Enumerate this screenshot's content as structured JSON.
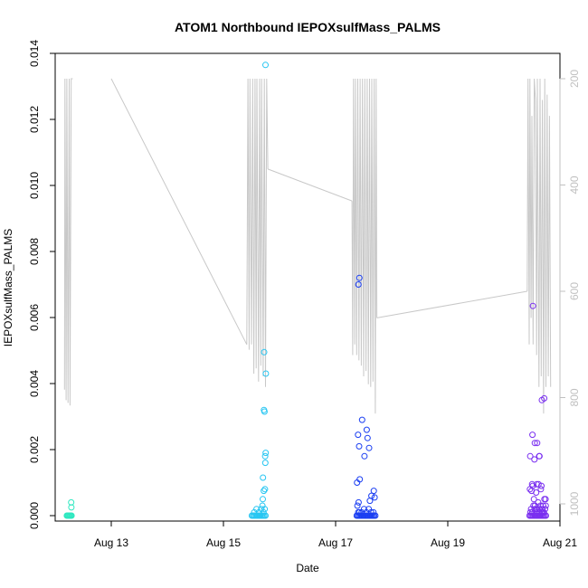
{
  "chart_data": {
    "type": "scatter",
    "title": "ATOM1 Northbound IEPOXsulfMass_PALMS",
    "xlabel": "Date",
    "ylabel": "IEPOXsulfMass_PALMS",
    "x_axis": {
      "type": "date",
      "range": [
        "2016-08-12T00:00",
        "2016-08-21T00:00"
      ],
      "ticks": [
        {
          "value": "2016-08-13",
          "label": "Aug 13"
        },
        {
          "value": "2016-08-15",
          "label": "Aug 15"
        },
        {
          "value": "2016-08-17",
          "label": "Aug 17"
        },
        {
          "value": "2016-08-19",
          "label": "Aug 19"
        },
        {
          "value": "2016-08-21",
          "label": "Aug 21"
        }
      ]
    },
    "y_axis": {
      "range": [
        0,
        0.014
      ],
      "ticks": [
        "0.000",
        "0.002",
        "0.004",
        "0.006",
        "0.008",
        "0.010",
        "0.012",
        "0.014"
      ]
    },
    "y2_axis": {
      "reversed": true,
      "range": [
        1000,
        200
      ],
      "ticks": [
        "200",
        "400",
        "600",
        "800",
        "1000"
      ],
      "color": "#c0c0c0"
    },
    "grid": false,
    "legend": "none",
    "colors": {
      "flight1": "#2ee8c0",
      "flight2": "#27c6f2",
      "flight3": "#1a3ef2",
      "flight4": "#7a2ff0",
      "altitude_trace": "#c8c8c8"
    },
    "series": [
      {
        "color_key": "flight1",
        "x": [
          "2016-08-12T05:00",
          "2016-08-12T05:20",
          "2016-08-12T05:40",
          "2016-08-12T06:00",
          "2016-08-12T06:20",
          "2016-08-12T06:40",
          "2016-08-12T07:00",
          "2016-08-12T06:50",
          "2016-08-12T06:55"
        ],
        "y": [
          0.0,
          0.0,
          0.0,
          0.0,
          0.0,
          0.0,
          0.0,
          0.0004,
          0.00025
        ]
      },
      {
        "color_key": "flight2",
        "x": [
          "2016-08-15T12:10",
          "2016-08-15T12:40",
          "2016-08-15T13:00",
          "2016-08-15T13:30",
          "2016-08-15T14:00",
          "2016-08-15T14:30",
          "2016-08-15T15:00",
          "2016-08-15T15:30",
          "2016-08-15T16:00",
          "2016-08-15T16:30",
          "2016-08-15T17:00",
          "2016-08-15T17:30",
          "2016-08-15T18:00",
          "2016-08-15T13:10",
          "2016-08-15T14:10",
          "2016-08-15T15:10",
          "2016-08-15T16:40",
          "2016-08-15T17:10",
          "2016-08-15T17:40",
          "2016-08-15T16:10",
          "2016-08-15T16:50",
          "2016-08-15T17:15",
          "2016-08-15T16:55",
          "2016-08-15T17:45",
          "2016-08-15T18:05",
          "2016-08-15T17:50",
          "2016-08-15T17:20",
          "2016-08-15T18:10",
          "2016-08-15T17:35",
          "2016-08-15T17:55",
          "2016-08-15T17:25",
          "2016-08-15T18:00"
        ],
        "y": [
          0.0,
          0.0,
          0.0,
          0.0,
          0.0,
          0.0,
          0.0,
          0.0,
          0.0,
          0.0,
          0.0,
          0.0,
          0.0,
          0.0001,
          0.0002,
          0.0001,
          0.0003,
          0.0001,
          0.0002,
          0.0002,
          0.0005,
          0.00075,
          0.00115,
          0.0008,
          0.0019,
          0.0018,
          0.0032,
          0.0043,
          0.00315,
          0.0016,
          0.00495,
          0.01365
        ]
      },
      {
        "color_key": "flight3",
        "x": [
          "2016-08-17T09:00",
          "2016-08-17T09:30",
          "2016-08-17T10:00",
          "2016-08-17T10:30",
          "2016-08-17T11:00",
          "2016-08-17T11:30",
          "2016-08-17T12:00",
          "2016-08-17T12:30",
          "2016-08-17T13:00",
          "2016-08-17T13:30",
          "2016-08-17T14:00",
          "2016-08-17T14:30",
          "2016-08-17T15:00",
          "2016-08-17T15:30",
          "2016-08-17T16:00",
          "2016-08-17T16:30",
          "2016-08-17T17:00",
          "2016-08-17T09:40",
          "2016-08-17T10:10",
          "2016-08-17T11:10",
          "2016-08-17T12:10",
          "2016-08-17T13:10",
          "2016-08-17T14:10",
          "2016-08-17T15:10",
          "2016-08-17T16:10",
          "2016-08-17T09:20",
          "2016-08-17T09:50",
          "2016-08-17T14:40",
          "2016-08-17T15:20",
          "2016-08-17T16:20",
          "2016-08-17T16:40",
          "2016-08-17T10:20",
          "2016-08-17T09:10",
          "2016-08-17T12:20",
          "2016-08-17T11:20",
          "2016-08-17T13:20",
          "2016-08-17T09:35",
          "2016-08-17T10:05"
        ],
        "y": [
          0.0,
          0.0,
          0.0,
          0.0,
          0.0,
          0.0,
          0.0,
          0.0,
          0.0,
          0.0,
          0.0,
          0.0,
          0.0,
          0.0,
          0.0,
          0.0,
          0.0,
          0.0001,
          0.0001,
          0.0001,
          0.0002,
          0.0001,
          0.0002,
          0.0001,
          0.0001,
          0.0003,
          0.0004,
          0.00045,
          0.0006,
          0.00075,
          0.00055,
          0.0011,
          0.001,
          0.0018,
          0.0029,
          0.0026,
          0.00245,
          0.0021
        ]
      },
      {
        "color_key": "flight3",
        "x": [
          "2016-08-17T13:40",
          "2016-08-17T14:20",
          "2016-08-17T09:45",
          "2016-08-17T10:10"
        ],
        "y": [
          0.00235,
          0.00205,
          0.007,
          0.0072
        ]
      },
      {
        "color_key": "flight4",
        "x": [
          "2016-08-20T11:00",
          "2016-08-20T11:30",
          "2016-08-20T12:00",
          "2016-08-20T12:30",
          "2016-08-20T13:00",
          "2016-08-20T13:30",
          "2016-08-20T14:00",
          "2016-08-20T14:30",
          "2016-08-20T15:00",
          "2016-08-20T15:30",
          "2016-08-20T16:00",
          "2016-08-20T16:30",
          "2016-08-20T17:00",
          "2016-08-20T17:30",
          "2016-08-20T18:00",
          "2016-08-20T11:20",
          "2016-08-20T12:10",
          "2016-08-20T13:10",
          "2016-08-20T14:10",
          "2016-08-20T15:10",
          "2016-08-20T16:10",
          "2016-08-20T17:10",
          "2016-08-20T17:40",
          "2016-08-20T12:40",
          "2016-08-20T13:40",
          "2016-08-20T14:40",
          "2016-08-20T15:40",
          "2016-08-20T16:40",
          "2016-08-20T11:40",
          "2016-08-20T12:50",
          "2016-08-20T13:20",
          "2016-08-20T14:20",
          "2016-08-20T15:20",
          "2016-08-20T16:20",
          "2016-08-20T17:20",
          "2016-08-20T11:10",
          "2016-08-20T11:50",
          "2016-08-20T12:20",
          "2016-08-20T13:50",
          "2016-08-20T14:50",
          "2016-08-20T15:50",
          "2016-08-20T16:50",
          "2016-08-20T17:50",
          "2016-08-20T12:05",
          "2016-08-20T14:05",
          "2016-08-20T16:05",
          "2016-08-20T13:05",
          "2016-08-20T15:05",
          "2016-08-20T11:15",
          "2016-08-20T12:15",
          "2016-08-20T13:15",
          "2016-08-20T16:15",
          "2016-08-20T17:15",
          "2016-08-20T14:15",
          "2016-08-20T15:15",
          "2016-08-20T17:55",
          "2016-08-20T12:25"
        ],
        "y": [
          0.0,
          0.0,
          0.0,
          0.0,
          0.0,
          0.0,
          0.0,
          0.0,
          0.0,
          0.0,
          0.0,
          0.0,
          0.0,
          0.0,
          0.0,
          0.0001,
          0.0001,
          0.0002,
          0.0001,
          0.0002,
          0.0001,
          0.0001,
          0.0002,
          0.0003,
          0.0002,
          0.0004,
          0.0003,
          0.0001,
          0.0002,
          0.0005,
          0.0003,
          0.0002,
          0.0001,
          0.0002,
          0.0005,
          0.0008,
          0.00075,
          0.0009,
          0.0007,
          0.00095,
          0.0008,
          0.0003,
          0.0005,
          0.00095,
          0.00095,
          0.0009,
          0.0017,
          0.0018,
          0.0018,
          0.00245,
          0.0022,
          0.0035,
          0.00355,
          0.0022,
          0.0018,
          0.0003,
          0.00635
        ]
      }
    ],
    "altitude_trace": {
      "note_axis": "y2",
      "segments": [
        [
          [
            "2016-08-12T04:00",
            785
          ],
          [
            "2016-08-12T04:10",
            200
          ],
          [
            "2016-08-12T04:40",
            805
          ],
          [
            "2016-08-12T05:00",
            200
          ],
          [
            "2016-08-12T05:30",
            810
          ],
          [
            "2016-08-12T06:00",
            200
          ],
          [
            "2016-08-12T06:20",
            815
          ],
          [
            "2016-08-12T06:50",
            200
          ],
          [
            "2016-08-12T07:10",
            200
          ],
          [
            "2016-08-12T07:30",
            200
          ]
        ],
        [
          [
            "2016-08-13T00:00",
            200
          ],
          [
            "2016-08-15T10:00",
            700
          ]
        ],
        [
          [
            "2016-08-15T10:00",
            700
          ],
          [
            "2016-08-15T10:30",
            200
          ],
          [
            "2016-08-15T11:00",
            710
          ],
          [
            "2016-08-15T11:20",
            200
          ],
          [
            "2016-08-15T12:00",
            700
          ],
          [
            "2016-08-15T12:30",
            200
          ],
          [
            "2016-08-15T13:00",
            755
          ],
          [
            "2016-08-15T13:30",
            200
          ],
          [
            "2016-08-15T14:00",
            745
          ],
          [
            "2016-08-15T14:20",
            200
          ],
          [
            "2016-08-15T15:00",
            770
          ],
          [
            "2016-08-15T15:30",
            200
          ],
          [
            "2016-08-15T16:00",
            740
          ],
          [
            "2016-08-15T16:20",
            200
          ],
          [
            "2016-08-15T17:00",
            760
          ],
          [
            "2016-08-15T17:30",
            200
          ],
          [
            "2016-08-15T18:00",
            780
          ],
          [
            "2016-08-15T18:30",
            200
          ],
          [
            "2016-08-15T19:00",
            370
          ]
        ],
        [
          [
            "2016-08-15T19:00",
            370
          ],
          [
            "2016-08-17T07:00",
            430
          ]
        ],
        [
          [
            "2016-08-17T07:00",
            430
          ],
          [
            "2016-08-17T07:20",
            720
          ],
          [
            "2016-08-17T07:40",
            200
          ],
          [
            "2016-08-17T08:10",
            700
          ],
          [
            "2016-08-17T08:30",
            200
          ],
          [
            "2016-08-17T09:00",
            720
          ],
          [
            "2016-08-17T09:30",
            200
          ],
          [
            "2016-08-17T10:00",
            730
          ],
          [
            "2016-08-17T10:30",
            200
          ],
          [
            "2016-08-17T11:00",
            740
          ],
          [
            "2016-08-17T11:30",
            200
          ],
          [
            "2016-08-17T12:00",
            760
          ],
          [
            "2016-08-17T12:30",
            200
          ],
          [
            "2016-08-17T13:00",
            750
          ],
          [
            "2016-08-17T13:30",
            200
          ],
          [
            "2016-08-17T14:00",
            775
          ],
          [
            "2016-08-17T14:30",
            200
          ],
          [
            "2016-08-17T15:00",
            780
          ],
          [
            "2016-08-17T15:30",
            200
          ],
          [
            "2016-08-17T16:00",
            770
          ],
          [
            "2016-08-17T16:30",
            200
          ],
          [
            "2016-08-17T17:00",
            830
          ],
          [
            "2016-08-17T17:20",
            200
          ],
          [
            "2016-08-17T17:40",
            650
          ]
        ],
        [
          [
            "2016-08-17T17:40",
            650
          ],
          [
            "2016-08-20T10:00",
            600
          ]
        ],
        [
          [
            "2016-08-20T10:00",
            600
          ],
          [
            "2016-08-20T10:20",
            200
          ],
          [
            "2016-08-20T10:50",
            700
          ],
          [
            "2016-08-20T11:10",
            200
          ],
          [
            "2016-08-20T11:40",
            650
          ],
          [
            "2016-08-20T12:00",
            270
          ],
          [
            "2016-08-20T12:30",
            700
          ],
          [
            "2016-08-20T13:00",
            200
          ],
          [
            "2016-08-20T13:30",
            240
          ],
          [
            "2016-08-20T14:00",
            720
          ],
          [
            "2016-08-20T14:20",
            200
          ],
          [
            "2016-08-20T15:00",
            780
          ],
          [
            "2016-08-20T15:30",
            200
          ],
          [
            "2016-08-20T16:00",
            760
          ],
          [
            "2016-08-20T16:30",
            240
          ],
          [
            "2016-08-20T17:00",
            830
          ],
          [
            "2016-08-20T17:30",
            200
          ],
          [
            "2016-08-20T18:00",
            780
          ],
          [
            "2016-08-20T18:30",
            230
          ],
          [
            "2016-08-20T19:00",
            760
          ],
          [
            "2016-08-20T19:30",
            270
          ],
          [
            "2016-08-20T20:00",
            780
          ]
        ]
      ]
    }
  }
}
